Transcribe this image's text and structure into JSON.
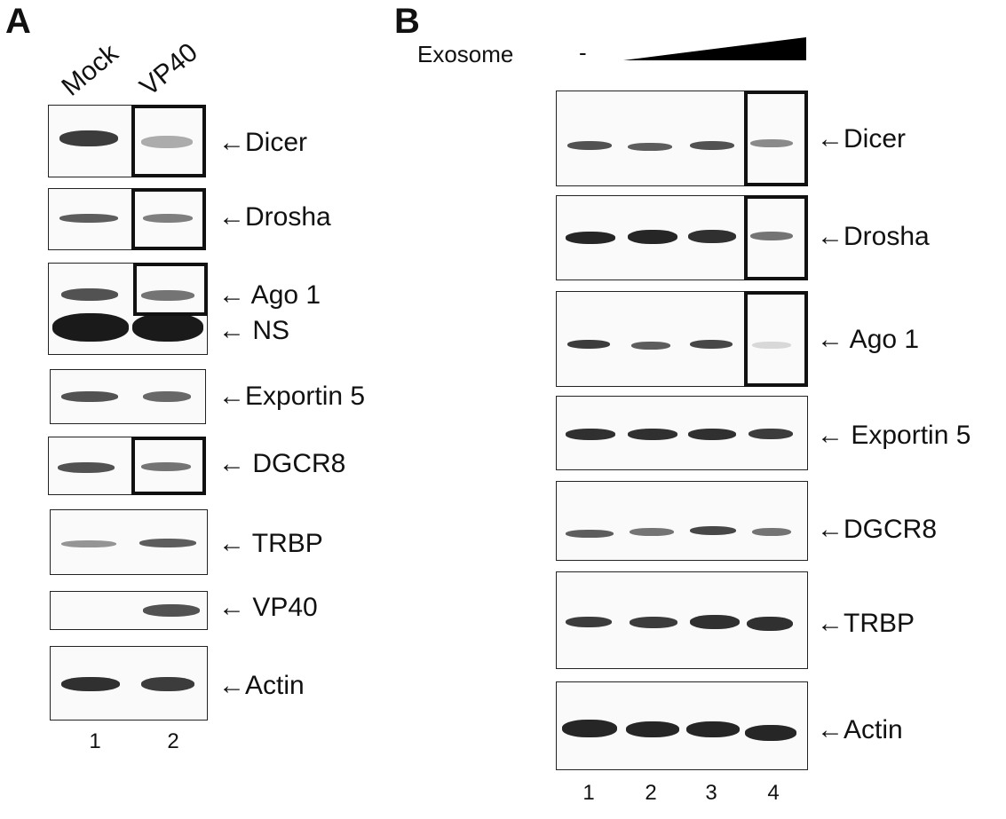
{
  "panelA": {
    "letter": "A",
    "lane_headers": [
      "Mock",
      "VP40"
    ],
    "rows": [
      {
        "label": "←Dicer",
        "bands": [
          0.85,
          0.35
        ],
        "framed": true
      },
      {
        "label": "←Drosha",
        "bands": [
          0.7,
          0.55
        ],
        "framed": true
      },
      {
        "label": "← Ago 1",
        "bands": [
          0.75,
          0.6
        ],
        "framed": true
      },
      {
        "label": "← NS",
        "bands": [
          1.0,
          1.0
        ],
        "framed": false
      },
      {
        "label": "←Exportin 5",
        "bands": [
          0.75,
          0.65
        ],
        "framed": false
      },
      {
        "label": "← DGCR8",
        "bands": [
          0.75,
          0.6
        ],
        "framed": true
      },
      {
        "label": "← TRBP",
        "bands": [
          0.45,
          0.7
        ],
        "framed": false
      },
      {
        "label": "← VP40",
        "bands": [
          0.0,
          0.75
        ],
        "framed": false
      },
      {
        "label": "←Actin",
        "bands": [
          0.9,
          0.85
        ],
        "framed": false
      }
    ],
    "lane_numbers": [
      "1",
      "2"
    ]
  },
  "panelB": {
    "letter": "B",
    "exosome_label": "Exosome",
    "exosome_none": "-",
    "rows": [
      {
        "label": "←Dicer",
        "bands": [
          0.75,
          0.7,
          0.75,
          0.5
        ],
        "framed": true
      },
      {
        "label": "←Drosha",
        "bands": [
          0.95,
          0.95,
          0.9,
          0.6
        ],
        "framed": true
      },
      {
        "label": "← Ago 1",
        "bands": [
          0.85,
          0.7,
          0.8,
          0.15
        ],
        "framed": true
      },
      {
        "label": "← Exportin 5",
        "bands": [
          0.9,
          0.9,
          0.9,
          0.85
        ],
        "framed": false
      },
      {
        "label": "←DGCR8",
        "bands": [
          0.7,
          0.6,
          0.8,
          0.6
        ],
        "framed": false
      },
      {
        "label": "←TRBP",
        "bands": [
          0.85,
          0.85,
          0.9,
          0.9
        ],
        "framed": false
      },
      {
        "label": "←Actin",
        "bands": [
          0.95,
          0.95,
          0.95,
          0.95
        ],
        "framed": false
      }
    ],
    "lane_numbers": [
      "1",
      "2",
      "3",
      "4"
    ]
  }
}
